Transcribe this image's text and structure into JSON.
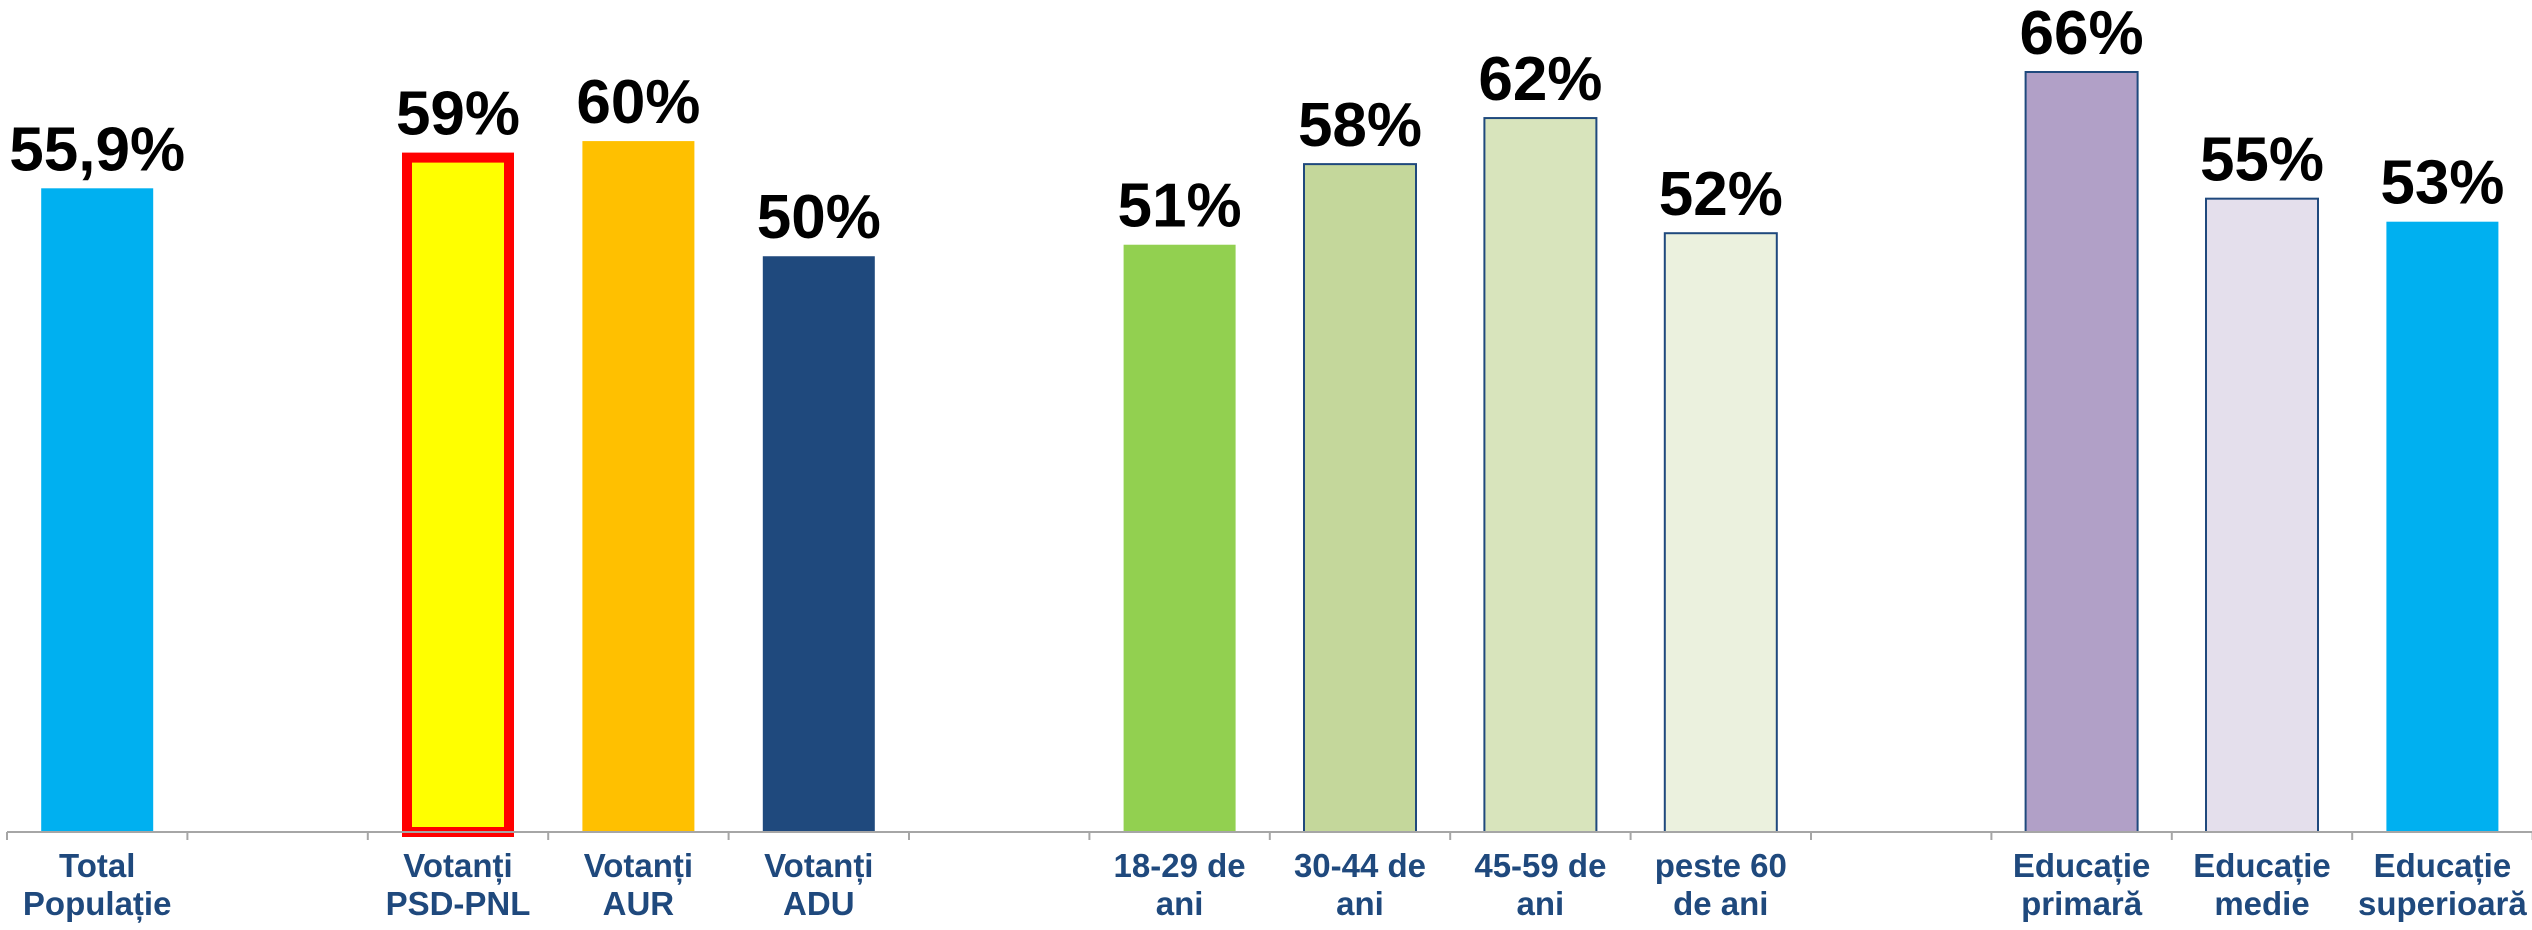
{
  "chart_data": {
    "type": "bar",
    "title": "",
    "xlabel": "",
    "ylabel": "",
    "ylim": [
      0,
      70
    ],
    "grid": false,
    "legend": "none",
    "categories": [
      [
        "Total",
        "Populație"
      ],
      [],
      [
        "Votanți",
        "PSD-PNL"
      ],
      [
        "Votanți",
        "AUR"
      ],
      [
        "Votanți",
        "ADU"
      ],
      [],
      [
        "18-29 de",
        "ani"
      ],
      [
        "30-44 de",
        "ani"
      ],
      [
        "45-59 de",
        "ani"
      ],
      [
        "peste 60",
        "de ani"
      ],
      [],
      [
        "Educație",
        "primară"
      ],
      [
        "Educație",
        "medie"
      ],
      [
        "Educație",
        "superioară"
      ]
    ],
    "values": [
      55.9,
      null,
      59,
      60,
      50,
      null,
      51,
      58,
      62,
      52,
      null,
      66,
      55,
      53
    ],
    "value_labels": [
      "55,9%",
      "",
      "59%",
      "60%",
      "50%",
      "",
      "51%",
      "58%",
      "62%",
      "52%",
      "",
      "66%",
      "55%",
      "53%"
    ],
    "colors": [
      "#00b0f0",
      "",
      "#ffff00",
      "#ffc000",
      "#1f497d",
      "",
      "#92d050",
      "#c4d79b",
      "#d8e4bc",
      "#ebf1de",
      "",
      "#b1a0c7",
      "#e4dfec",
      "#00b0f0"
    ],
    "highlight": {
      "index": 2,
      "border_color": "#ff0000"
    }
  }
}
